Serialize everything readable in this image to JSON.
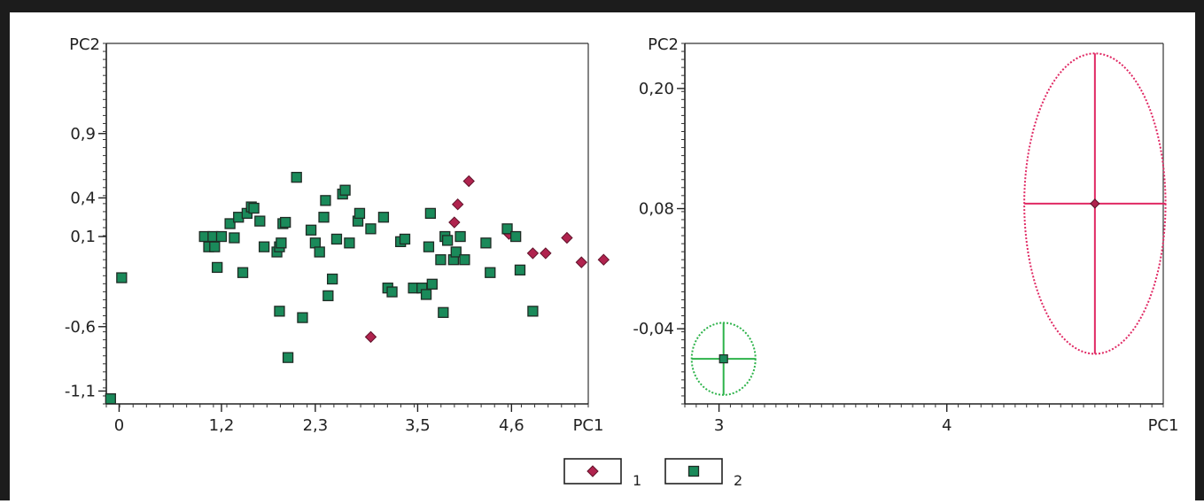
{
  "chart_data": [
    {
      "type": "scatter",
      "xlabel": "PC1",
      "ylabel": "PC2",
      "xlim": [
        -0.15,
        5.5
      ],
      "ylim": [
        -1.2,
        1.6
      ],
      "x_ticks": [
        0,
        1.2,
        2.3,
        3.5,
        4.6
      ],
      "x_tick_labels": [
        "0",
        "1,2",
        "2,3",
        "3,5",
        "4,6"
      ],
      "y_ticks": [
        0.9,
        0.4,
        0.1,
        -0.6,
        -1.1
      ],
      "y_tick_labels": [
        "0,9",
        "0,4",
        "0,1",
        "-0,6",
        "-1,1"
      ],
      "grid": false,
      "series": [
        {
          "name": "1",
          "color": "#b0234e",
          "marker": "diamond",
          "points": [
            [
              4.1,
              0.53
            ],
            [
              3.97,
              0.35
            ],
            [
              3.93,
              0.21
            ],
            [
              2.95,
              -0.68
            ],
            [
              4.57,
              0.12
            ],
            [
              4.85,
              -0.03
            ],
            [
              5.0,
              -0.03
            ],
            [
              5.25,
              0.09
            ],
            [
              5.42,
              -0.1
            ],
            [
              5.68,
              -0.08
            ]
          ]
        },
        {
          "name": "2",
          "color": "#1a8a5a",
          "marker": "square",
          "points": [
            [
              -0.1,
              -1.16
            ],
            [
              0.03,
              -0.22
            ],
            [
              1.0,
              0.1
            ],
            [
              1.05,
              0.02
            ],
            [
              1.1,
              0.1
            ],
            [
              1.12,
              0.02
            ],
            [
              1.15,
              -0.14
            ],
            [
              1.2,
              0.1
            ],
            [
              1.3,
              0.2
            ],
            [
              1.35,
              0.09
            ],
            [
              1.4,
              0.25
            ],
            [
              1.45,
              -0.18
            ],
            [
              1.5,
              0.28
            ],
            [
              1.55,
              0.33
            ],
            [
              1.58,
              0.32
            ],
            [
              1.65,
              0.22
            ],
            [
              1.7,
              0.02
            ],
            [
              1.85,
              -0.02
            ],
            [
              1.88,
              0.02
            ],
            [
              1.9,
              0.05
            ],
            [
              1.92,
              0.2
            ],
            [
              1.95,
              0.21
            ],
            [
              1.88,
              -0.48
            ],
            [
              1.98,
              -0.84
            ],
            [
              2.08,
              0.56
            ],
            [
              2.15,
              -0.53
            ],
            [
              2.25,
              0.15
            ],
            [
              2.3,
              0.05
            ],
            [
              2.35,
              -0.02
            ],
            [
              2.4,
              0.25
            ],
            [
              2.42,
              0.38
            ],
            [
              2.45,
              -0.36
            ],
            [
              2.5,
              -0.23
            ],
            [
              2.55,
              0.08
            ],
            [
              2.62,
              0.43
            ],
            [
              2.65,
              0.46
            ],
            [
              2.7,
              0.05
            ],
            [
              2.8,
              0.22
            ],
            [
              2.82,
              0.28
            ],
            [
              2.95,
              0.16
            ],
            [
              3.1,
              0.25
            ],
            [
              3.15,
              -0.3
            ],
            [
              3.2,
              -0.33
            ],
            [
              3.3,
              0.06
            ],
            [
              3.35,
              0.08
            ],
            [
              3.45,
              -0.3
            ],
            [
              3.55,
              -0.3
            ],
            [
              3.6,
              -0.35
            ],
            [
              3.65,
              0.28
            ],
            [
              3.63,
              0.02
            ],
            [
              3.67,
              -0.27
            ],
            [
              3.77,
              -0.08
            ],
            [
              3.8,
              -0.49
            ],
            [
              3.82,
              0.1
            ],
            [
              3.85,
              0.07
            ],
            [
              3.92,
              -0.08
            ],
            [
              3.95,
              -0.02
            ],
            [
              4.0,
              0.1
            ],
            [
              4.05,
              -0.08
            ],
            [
              4.3,
              0.05
            ],
            [
              4.35,
              -0.18
            ],
            [
              4.55,
              0.16
            ],
            [
              4.65,
              0.1
            ],
            [
              4.7,
              -0.16
            ],
            [
              4.85,
              -0.48
            ]
          ]
        }
      ]
    },
    {
      "type": "scatter",
      "xlabel": "PC1",
      "ylabel": "PC2",
      "xlim": [
        2.85,
        4.95
      ],
      "ylim": [
        -0.115,
        0.245
      ],
      "x_ticks": [
        3,
        4
      ],
      "x_tick_labels": [
        "3",
        "4"
      ],
      "y_ticks": [
        0.2,
        0.08,
        -0.04
      ],
      "y_tick_labels": [
        "0,20",
        "0,08",
        "-0,04"
      ],
      "grid": false,
      "series": [
        {
          "name": "1",
          "color": "#e02863",
          "marker": "diamond",
          "center": [
            4.65,
            0.085
          ],
          "radius_x": 0.31,
          "radius_y": 0.15
        },
        {
          "name": "2",
          "color": "#2db34a",
          "marker": "square",
          "center": [
            3.02,
            -0.07
          ],
          "radius_x": 0.14,
          "radius_y": 0.036
        }
      ]
    }
  ],
  "legend": {
    "items": [
      {
        "label": "1",
        "color": "#b0234e",
        "marker": "diamond"
      },
      {
        "label": "2",
        "color": "#1a8a5a",
        "marker": "square"
      }
    ]
  }
}
